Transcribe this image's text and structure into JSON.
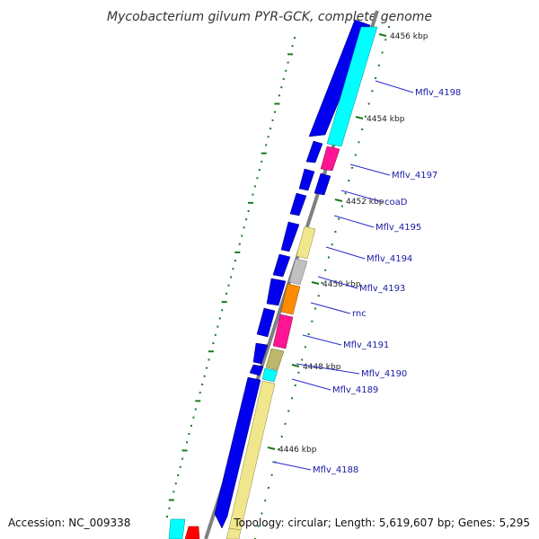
{
  "title": "Mycobacterium gilvum PYR-GCK, complete genome",
  "accession": "Accession: NC_009338",
  "topology": "Topology: circular; Length: 5,619,607 bp; Genes: 5,295",
  "colors": {
    "backbone": "#808080",
    "cds_forward": "#0000ee",
    "cds_reverse": "#000000",
    "tick": "#1a7a1a",
    "label_line": "#2a2acc",
    "cyan": "#00ffff",
    "pink": "#ff1493",
    "khaki": "#f0e68c",
    "lightgray": "#c0c0c0",
    "orange": "#ff8c00",
    "olive": "#bdb76b",
    "red": "#ff0000"
  },
  "scale_marks": [
    {
      "label": "4456 kbp"
    },
    {
      "label": "4454 kbp"
    },
    {
      "label": "4452 kbp"
    },
    {
      "label": "4450 kbp"
    },
    {
      "label": "4448 kbp"
    },
    {
      "label": "4446 kbp"
    }
  ],
  "genes": [
    {
      "name": "Mflv_4198"
    },
    {
      "name": "Mflv_4197"
    },
    {
      "name": "coaD"
    },
    {
      "name": "Mflv_4195"
    },
    {
      "name": "Mflv_4194"
    },
    {
      "name": "Mflv_4193"
    },
    {
      "name": "rnc"
    },
    {
      "name": "Mflv_4191"
    },
    {
      "name": "Mflv_4190"
    },
    {
      "name": "Mflv_4189"
    },
    {
      "name": "Mflv_4188"
    }
  ]
}
